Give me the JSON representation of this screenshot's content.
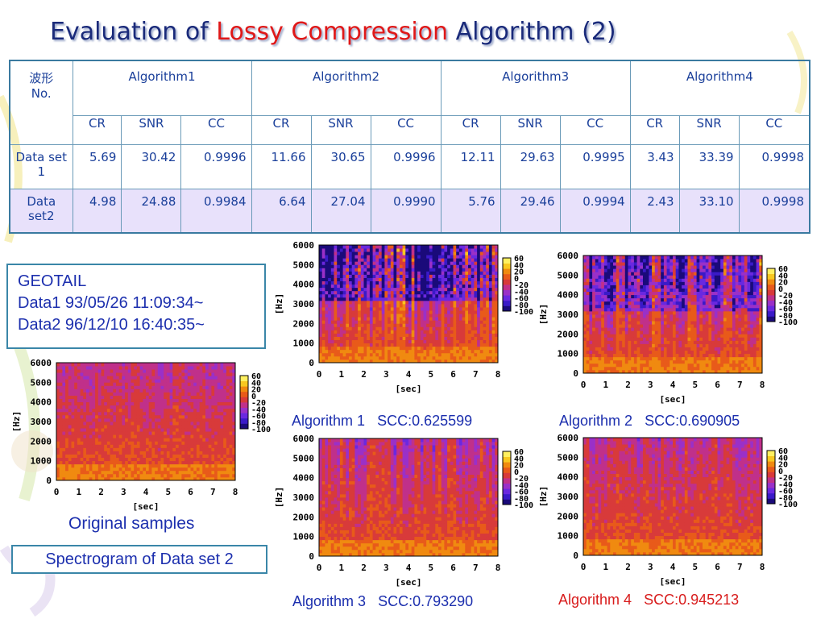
{
  "title": {
    "prefix": "Evaluation of",
    "highlight": "Lossy Compression",
    "suffix": "Algorithm (2)"
  },
  "table": {
    "corner_label_line1": "波形",
    "corner_label_line2": "No.",
    "algorithms": [
      "Algorithm1",
      "Algorithm2",
      "Algorithm3",
      "Algorithm4"
    ],
    "metrics": [
      "CR",
      "SNR",
      "CC"
    ],
    "rows": [
      {
        "label": "Data set 1",
        "values": [
          "5.69",
          "30.42",
          "0.9996",
          "11.66",
          "30.65",
          "0.9996",
          "12.11",
          "29.63",
          "0.9995",
          "3.43",
          "33.39",
          "0.9998"
        ]
      },
      {
        "label": "Data set2",
        "values": [
          "4.98",
          "24.88",
          "0.9984",
          "6.64",
          "27.04",
          "0.9990",
          "5.76",
          "29.46",
          "0.9994",
          "2.43",
          "33.10",
          "0.9998"
        ]
      }
    ]
  },
  "info": {
    "line1": "GEOTAIL",
    "line2": "Data1 93/05/26 11:09:34~",
    "line3": "Data2 96/12/10 16:40:35~"
  },
  "captions": {
    "original": "Original samples",
    "spectrogram": "Spectrogram of Data set 2",
    "alg1": "Algorithm 1",
    "alg1_scc": "SCC:0.625599",
    "alg2": "Algorithm 2",
    "alg2_scc": "SCC:0.690905",
    "alg3": "Algorithm 3",
    "alg3_scc": "SCC:0.793290",
    "alg4": "Algorithm 4",
    "alg4_scc": "SCC:0.945213"
  },
  "plot_axes": {
    "y_ticks": [
      "0",
      "1000",
      "2000",
      "3000",
      "4000",
      "5000",
      "6000"
    ],
    "x_ticks": [
      "0",
      "1",
      "2",
      "3",
      "4",
      "5",
      "6",
      "7",
      "8"
    ],
    "y_label": "[Hz]",
    "x_label": "[sec]",
    "colorbar_ticks": [
      "60",
      "40",
      "20",
      "0",
      "-20",
      "-40",
      "-60",
      "-80",
      "-100"
    ]
  },
  "colors": {
    "title_blue": "#1a2a7a",
    "title_red": "#e01818",
    "caption_blue": "#1c2fae",
    "caption_red": "#d81c1c",
    "table_alt_row": "#e8e1fb"
  }
}
